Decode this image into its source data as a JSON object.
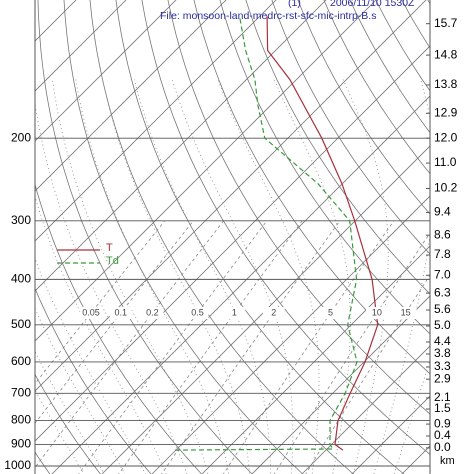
{
  "chart_data": {
    "type": "skewt",
    "annotations": [
      "(1)",
      "2006/11/10 1530Z",
      "File: monsoon-land-medrc-rst-sfc-mic-intrp-B.s"
    ],
    "y_scale": "log",
    "ylim": [
      1000,
      100
    ],
    "yticks": [
      200,
      300,
      400,
      500,
      600,
      700,
      800,
      900,
      1000
    ],
    "y2_label": "km",
    "km_ticks": [
      {
        "label": "15.7",
        "pressure": 114
      },
      {
        "label": "14.8",
        "pressure": 133
      },
      {
        "label": "13.8",
        "pressure": 154
      },
      {
        "label": "12.9",
        "pressure": 177
      },
      {
        "label": "12.0",
        "pressure": 200
      },
      {
        "label": "11.0",
        "pressure": 226
      },
      {
        "label": "10.2",
        "pressure": 256
      },
      {
        "label": "9.4",
        "pressure": 288
      },
      {
        "label": "8.6",
        "pressure": 322
      },
      {
        "label": "7.8",
        "pressure": 355
      },
      {
        "label": "7.0",
        "pressure": 392
      },
      {
        "label": "6.3",
        "pressure": 428
      },
      {
        "label": "5.6",
        "pressure": 465
      },
      {
        "label": "5.0",
        "pressure": 503
      },
      {
        "label": "4.4",
        "pressure": 544
      },
      {
        "label": "3.8",
        "pressure": 577
      },
      {
        "label": "3.3",
        "pressure": 615
      },
      {
        "label": "2.9",
        "pressure": 653
      },
      {
        "label": "2.1",
        "pressure": 716
      },
      {
        "label": "1.5",
        "pressure": 756
      },
      {
        "label": "0.9",
        "pressure": 814
      },
      {
        "label": "0.4",
        "pressure": 863
      },
      {
        "label": "0.0",
        "pressure": 915
      }
    ],
    "mixing_ratio_labels": [
      0.05,
      0.1,
      0.2,
      0.5,
      1,
      2,
      5,
      10,
      15
    ],
    "series": [
      {
        "name": "T",
        "color": "#a8323c",
        "dashed": false,
        "pressure": [
          925,
          900,
          800,
          700,
          600,
          500,
          400,
          300,
          250,
          200,
          150,
          130,
          110
        ],
        "values": [
          23.4,
          20.7,
          16.5,
          13.5,
          10.2,
          5.3,
          -4.9,
          -20.1,
          -30.1,
          -43.2,
          -61.3,
          -71.6,
          -78.5
        ]
      },
      {
        "name": "Td",
        "color": "#3a9a3a",
        "dashed": true,
        "pressure": [
          925,
          920,
          900,
          800,
          700,
          600,
          500,
          400,
          300,
          250,
          200,
          170,
          150,
          130,
          110
        ],
        "values": [
          -10.2,
          21.2,
          19.7,
          14.9,
          12.5,
          8.6,
          -0.7,
          -8.0,
          -21.1,
          -34.9,
          -54.6,
          -62.6,
          -68.3,
          -76,
          -84
        ]
      }
    ]
  }
}
